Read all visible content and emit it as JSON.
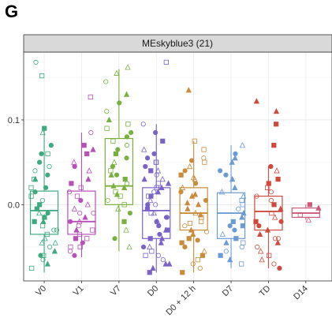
{
  "panel_letter": "G",
  "chart_data": {
    "type": "boxplot",
    "facet_title": "MEskyblue3 (21)",
    "xlabel": "",
    "ylabel": "",
    "ylim": [
      -0.09,
      0.18
    ],
    "yticks": [
      {
        "value": 0.0,
        "label": "0.0"
      },
      {
        "value": 0.1,
        "label": "0.1"
      }
    ],
    "grid": true,
    "marker_shapes": [
      "circle",
      "circle-open",
      "square",
      "square-open",
      "triangle",
      "triangle-open"
    ],
    "groups": [
      {
        "name": "V0",
        "color": "#3daa7f",
        "box": {
          "min": -0.08,
          "q1": -0.035,
          "median": -0.007,
          "q3": 0.016,
          "max": 0.09
        },
        "points": [
          0.168,
          0.152,
          0.09,
          0.085,
          0.07,
          0.06,
          0.05,
          0.04,
          0.03,
          0.02,
          0.01,
          0.005,
          0.0,
          -0.005,
          -0.01,
          -0.015,
          -0.02,
          -0.025,
          -0.03,
          -0.035,
          -0.04,
          -0.045,
          -0.05,
          -0.055,
          -0.06,
          -0.065,
          -0.07,
          -0.075,
          0.02,
          -0.01,
          0.03,
          -0.03,
          0.015,
          -0.02,
          -0.045,
          0.06,
          -0.06,
          0.035,
          -0.015,
          0.045
        ]
      },
      {
        "name": "V1",
        "color": "#b94fb9",
        "box": {
          "min": -0.062,
          "q1": -0.035,
          "median": -0.02,
          "q3": 0.016,
          "max": 0.085
        },
        "points": [
          0.127,
          0.085,
          0.07,
          0.06,
          0.05,
          0.04,
          0.03,
          0.02,
          0.015,
          0.01,
          0.0,
          -0.005,
          -0.01,
          -0.015,
          -0.02,
          -0.025,
          -0.03,
          -0.035,
          -0.04,
          -0.045,
          -0.05,
          -0.055,
          -0.06,
          0.025,
          -0.02,
          0.005,
          -0.03,
          0.045,
          -0.04,
          -0.01,
          0.065,
          -0.05
        ]
      },
      {
        "name": "V7",
        "color": "#7ab040",
        "box": {
          "min": -0.055,
          "q1": 0.0,
          "median": 0.022,
          "q3": 0.078,
          "max": 0.16
        },
        "points": [
          0.162,
          0.155,
          0.145,
          0.13,
          0.12,
          0.11,
          0.1,
          0.095,
          0.09,
          0.08,
          0.075,
          0.07,
          0.065,
          0.06,
          0.05,
          0.045,
          0.04,
          0.035,
          0.03,
          0.025,
          0.02,
          0.015,
          0.01,
          0.005,
          0.0,
          -0.005,
          -0.01,
          -0.02,
          -0.03,
          -0.04,
          -0.05,
          0.055,
          0.022,
          0.085,
          0.035,
          0.012
        ]
      },
      {
        "name": "D0",
        "color": "#7b62c9",
        "box": {
          "min": -0.08,
          "q1": -0.04,
          "median": -0.007,
          "q3": 0.02,
          "max": 0.095
        },
        "points": [
          0.168,
          0.095,
          0.085,
          0.075,
          0.065,
          0.055,
          0.05,
          0.045,
          0.04,
          0.035,
          0.03,
          0.025,
          0.02,
          0.015,
          0.01,
          0.005,
          0.0,
          -0.005,
          -0.01,
          -0.015,
          -0.02,
          -0.025,
          -0.03,
          -0.035,
          -0.04,
          -0.045,
          -0.05,
          -0.055,
          -0.06,
          -0.065,
          -0.07,
          -0.075,
          -0.08,
          0.01,
          -0.02,
          0.03,
          -0.04,
          0.05,
          -0.06,
          0.0,
          -0.03,
          0.02,
          -0.01,
          0.04,
          -0.05,
          0.06,
          -0.07,
          0.025,
          -0.015,
          0.015
        ]
      },
      {
        "name": "D0 + 12 h",
        "color": "#c98c3c",
        "box": {
          "min": -0.08,
          "q1": -0.03,
          "median": -0.01,
          "q3": 0.02,
          "max": 0.075
        },
        "points": [
          0.135,
          0.075,
          0.065,
          0.055,
          0.05,
          0.045,
          0.04,
          0.035,
          0.03,
          0.025,
          0.02,
          0.015,
          0.01,
          0.005,
          0.0,
          -0.005,
          -0.01,
          -0.015,
          -0.02,
          -0.025,
          -0.03,
          -0.035,
          -0.04,
          -0.045,
          -0.05,
          -0.055,
          -0.06,
          -0.065,
          -0.07,
          -0.075,
          -0.08,
          0.012,
          -0.022,
          0.032,
          -0.042,
          0.052,
          -0.012,
          0.002,
          -0.032
        ]
      },
      {
        "name": "D7",
        "color": "#6b9bd6",
        "box": {
          "min": -0.075,
          "q1": -0.04,
          "median": -0.01,
          "q3": 0.014,
          "max": 0.07
        },
        "points": [
          0.07,
          0.06,
          0.05,
          0.04,
          0.03,
          0.02,
          0.01,
          0.005,
          0.0,
          -0.005,
          -0.01,
          -0.015,
          -0.02,
          -0.025,
          -0.03,
          -0.035,
          -0.04,
          -0.045,
          -0.05,
          -0.055,
          -0.06,
          -0.065,
          -0.07,
          0.015,
          -0.025,
          0.035,
          -0.045,
          0.055
        ]
      },
      {
        "name": "TD",
        "color": "#cf4a3c",
        "box": {
          "min": -0.075,
          "q1": -0.03,
          "median": -0.008,
          "q3": 0.01,
          "max": 0.045
        },
        "points": [
          0.122,
          0.11,
          0.095,
          0.07,
          0.045,
          0.04,
          0.03,
          0.02,
          0.01,
          0.005,
          0.0,
          -0.005,
          -0.01,
          -0.015,
          -0.02,
          -0.025,
          -0.03,
          -0.035,
          -0.04,
          -0.045,
          -0.05,
          -0.055,
          -0.06,
          -0.065,
          -0.07,
          -0.075,
          0.015,
          -0.02,
          0.025,
          -0.04
        ]
      },
      {
        "name": "D14",
        "color": "#cc5a78",
        "box": {
          "min": -0.018,
          "q1": -0.015,
          "median": -0.01,
          "q3": -0.004,
          "max": 0.0
        },
        "points": [
          0.0,
          -0.004,
          -0.012,
          -0.018
        ]
      }
    ]
  }
}
